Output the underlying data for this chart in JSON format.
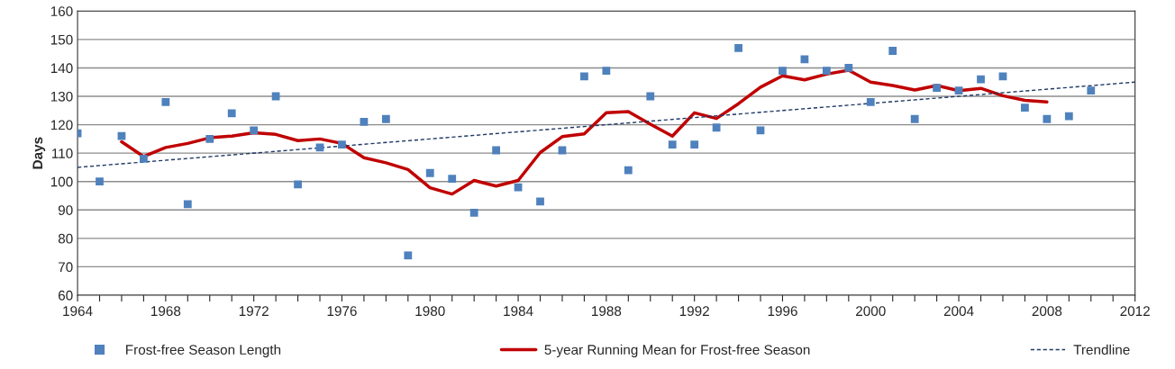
{
  "chart_data": {
    "type": "scatter",
    "ylabel": "Days",
    "xlim": [
      1964,
      2012
    ],
    "xticks": [
      1964,
      {
        "value": 1965,
        "label": null
      },
      {
        "value": 1966,
        "label": null
      },
      {
        "value": 1967,
        "label": null
      },
      1968,
      {
        "value": 1969,
        "label": null
      },
      {
        "value": 1970,
        "label": null
      },
      {
        "value": 1971,
        "label": null
      },
      1972,
      {
        "value": 1973,
        "label": null
      },
      {
        "value": 1974,
        "label": null
      },
      {
        "value": 1975,
        "label": null
      },
      1976,
      {
        "value": 1977,
        "label": null
      },
      {
        "value": 1978,
        "label": null
      },
      {
        "value": 1979,
        "label": null
      },
      1980,
      {
        "value": 1981,
        "label": null
      },
      {
        "value": 1982,
        "label": null
      },
      {
        "value": 1983,
        "label": null
      },
      1984,
      {
        "value": 1985,
        "label": null
      },
      {
        "value": 1986,
        "label": null
      },
      {
        "value": 1987,
        "label": null
      },
      1988,
      {
        "value": 1989,
        "label": null
      },
      {
        "value": 1990,
        "label": null
      },
      {
        "value": 1991,
        "label": null
      },
      1992,
      {
        "value": 1993,
        "label": null
      },
      {
        "value": 1994,
        "label": null
      },
      {
        "value": 1995,
        "label": null
      },
      1996,
      {
        "value": 1997,
        "label": null
      },
      {
        "value": 1998,
        "label": null
      },
      {
        "value": 1999,
        "label": null
      },
      2000,
      {
        "value": 2001,
        "label": null
      },
      {
        "value": 2002,
        "label": null
      },
      {
        "value": 2003,
        "label": null
      },
      2004,
      {
        "value": 2005,
        "label": null
      },
      {
        "value": 2006,
        "label": null
      },
      {
        "value": 2007,
        "label": null
      },
      2008,
      {
        "value": 2009,
        "label": null
      },
      {
        "value": 2010,
        "label": null
      },
      {
        "value": 2011,
        "label": null
      },
      2012
    ],
    "ylim": [
      60,
      160
    ],
    "yticks": [
      60,
      70,
      80,
      90,
      100,
      110,
      120,
      130,
      140,
      150,
      160
    ],
    "grid": "y",
    "legend": "bottom",
    "series": [
      {
        "name": "Frost-free Season Length",
        "marker": "square",
        "color": "#4f81bd",
        "x": [
          1964,
          1965,
          1966,
          1967,
          1968,
          1969,
          1970,
          1971,
          1972,
          1973,
          1974,
          1975,
          1976,
          1977,
          1978,
          1979,
          1980,
          1981,
          1982,
          1983,
          1984,
          1985,
          1986,
          1987,
          1988,
          1989,
          1990,
          1991,
          1992,
          1993,
          1994,
          1995,
          1996,
          1997,
          1998,
          1999,
          2000,
          2001,
          2002,
          2003,
          2004,
          2005,
          2006,
          2007,
          2008,
          2009,
          2010
        ],
        "values": [
          117,
          100,
          116,
          108,
          128,
          92,
          115,
          124,
          118,
          130,
          99,
          112,
          113,
          121,
          122,
          74,
          103,
          101,
          89,
          111,
          98,
          93,
          111,
          137,
          139,
          104,
          130,
          113,
          113,
          119,
          147,
          118,
          139,
          143,
          139,
          140,
          128,
          146,
          122,
          133,
          132,
          136,
          137,
          126,
          122,
          123,
          132
        ]
      },
      {
        "name": "5-year Running Mean for Frost-free Season",
        "type": "line",
        "line_style": "solid",
        "color": "#c00000",
        "x": [
          1966,
          1967,
          1968,
          1969,
          1970,
          1971,
          1972,
          1973,
          1974,
          1975,
          1976,
          1977,
          1978,
          1979,
          1980,
          1981,
          1982,
          1983,
          1984,
          1985,
          1986,
          1987,
          1988,
          1989,
          1990,
          1991,
          1992,
          1993,
          1994,
          1995,
          1996,
          1997,
          1998,
          1999,
          2000,
          2001,
          2002,
          2003,
          2004,
          2005,
          2006,
          2007,
          2008
        ],
        "values": [
          114,
          108.8,
          112,
          113.4,
          115.4,
          116,
          117.2,
          116.6,
          114.4,
          115,
          113.4,
          108.4,
          106.6,
          104.2,
          97.8,
          95.6,
          100.4,
          98.4,
          100.4,
          110.2,
          115.8,
          116.8,
          124.2,
          124.6,
          120.2,
          116,
          124.2,
          122.2,
          127.4,
          133.2,
          137.2,
          135.8,
          137.8,
          139.2,
          135,
          133.8,
          132.2,
          133.8,
          132,
          132.8,
          130.2,
          128.6,
          128
        ]
      },
      {
        "name": "Trendline",
        "type": "line",
        "line_style": "dashed",
        "color": "#1f3864",
        "x": [
          1964,
          2012
        ],
        "values": [
          105,
          135
        ]
      }
    ]
  }
}
